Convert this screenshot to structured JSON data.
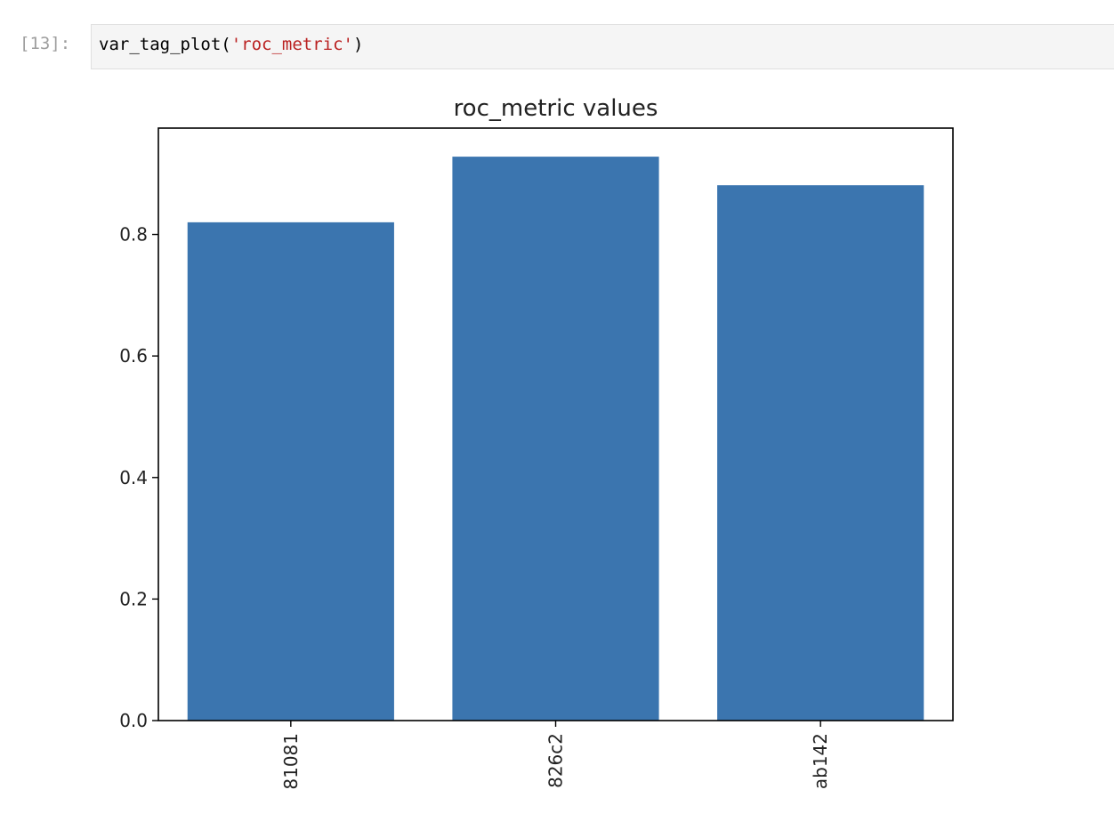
{
  "cell": {
    "prompt": "[13]:",
    "code": {
      "func": "var_tag_plot(",
      "arg": "'roc_metric'",
      "close": ")"
    }
  },
  "chart_data": {
    "type": "bar",
    "title": "roc_metric values",
    "categories": [
      "81081",
      "826c2",
      "ab142"
    ],
    "values": [
      0.82,
      0.928,
      0.881
    ],
    "ylim": [
      0,
      0.975
    ],
    "yticks": [
      0.0,
      0.2,
      0.4,
      0.6,
      0.8
    ],
    "ytick_labels": [
      "0.0",
      "0.2",
      "0.4",
      "0.6",
      "0.8"
    ],
    "xlabel": "",
    "ylabel": "",
    "xtick_rotation": "vertical",
    "grid": false,
    "bar_color": "#3b75af"
  }
}
